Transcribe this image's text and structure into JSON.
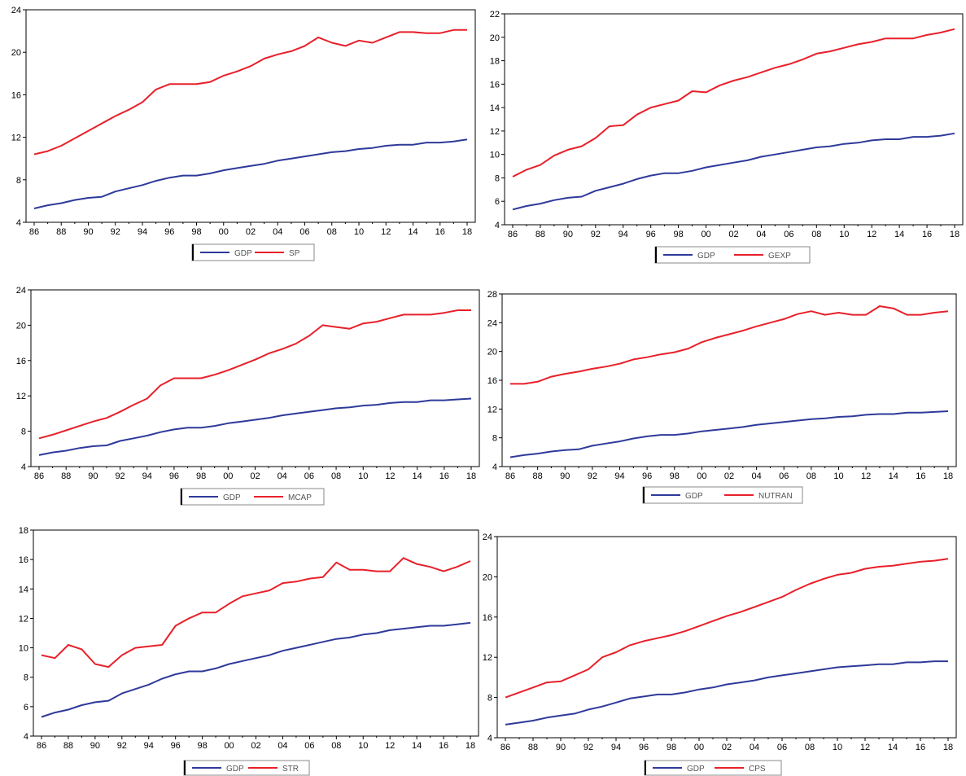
{
  "chart_data": [
    {
      "type": "line",
      "ylim": [
        4,
        24
      ],
      "y_ticks": [
        4,
        8,
        12,
        16,
        20,
        24
      ],
      "x_tick_labels": [
        "86",
        "88",
        "90",
        "92",
        "94",
        "96",
        "98",
        "00",
        "02",
        "04",
        "06",
        "08",
        "10",
        "12",
        "14",
        "16",
        "18"
      ],
      "grid": false,
      "legend": "bottom",
      "x": [
        1986,
        1987,
        1988,
        1989,
        1990,
        1991,
        1992,
        1993,
        1994,
        1995,
        1996,
        1997,
        1998,
        1999,
        2000,
        2001,
        2002,
        2003,
        2004,
        2005,
        2006,
        2007,
        2008,
        2009,
        2010,
        2011,
        2012,
        2013,
        2014,
        2015,
        2016,
        2017,
        2018
      ],
      "series": [
        {
          "name": "GDP",
          "color": "#2e3a9a",
          "values": [
            5.3,
            5.6,
            5.8,
            6.1,
            6.3,
            6.4,
            6.9,
            7.2,
            7.5,
            7.9,
            8.2,
            8.4,
            8.4,
            8.6,
            8.9,
            9.1,
            9.3,
            9.5,
            9.8,
            10.0,
            10.2,
            10.4,
            10.6,
            10.7,
            10.9,
            11.0,
            11.2,
            11.3,
            11.3,
            11.5,
            11.5,
            11.6,
            11.8
          ]
        },
        {
          "name": "SP",
          "color": "#e8202a",
          "values": [
            10.4,
            10.7,
            11.2,
            11.9,
            12.6,
            13.3,
            14.0,
            14.6,
            15.3,
            16.5,
            17.0,
            17.0,
            17.0,
            17.2,
            17.8,
            18.2,
            18.7,
            19.4,
            19.8,
            20.1,
            20.6,
            21.4,
            20.9,
            20.6,
            21.1,
            20.9,
            21.4,
            21.9,
            21.9,
            21.8,
            21.8,
            22.1,
            22.1
          ]
        }
      ]
    },
    {
      "type": "line",
      "ylim": [
        4,
        22
      ],
      "y_ticks": [
        4,
        6,
        8,
        10,
        12,
        14,
        16,
        18,
        20,
        22
      ],
      "x_tick_labels": [
        "86",
        "88",
        "90",
        "92",
        "94",
        "96",
        "98",
        "00",
        "02",
        "04",
        "06",
        "08",
        "10",
        "12",
        "14",
        "16",
        "18"
      ],
      "grid": false,
      "legend": "bottom",
      "x": [
        1986,
        1987,
        1988,
        1989,
        1990,
        1991,
        1992,
        1993,
        1994,
        1995,
        1996,
        1997,
        1998,
        1999,
        2000,
        2001,
        2002,
        2003,
        2004,
        2005,
        2006,
        2007,
        2008,
        2009,
        2010,
        2011,
        2012,
        2013,
        2014,
        2015,
        2016,
        2017,
        2018
      ],
      "series": [
        {
          "name": "GDP",
          "color": "#2e3a9a",
          "values": [
            5.3,
            5.6,
            5.8,
            6.1,
            6.3,
            6.4,
            6.9,
            7.2,
            7.5,
            7.9,
            8.2,
            8.4,
            8.4,
            8.6,
            8.9,
            9.1,
            9.3,
            9.5,
            9.8,
            10.0,
            10.2,
            10.4,
            10.6,
            10.7,
            10.9,
            11.0,
            11.2,
            11.3,
            11.3,
            11.5,
            11.5,
            11.6,
            11.8
          ]
        },
        {
          "name": "GEXP",
          "color": "#e8202a",
          "values": [
            8.1,
            8.7,
            9.1,
            9.9,
            10.4,
            10.7,
            11.4,
            12.4,
            12.5,
            13.4,
            14.0,
            14.3,
            14.6,
            15.4,
            15.3,
            15.9,
            16.3,
            16.6,
            17.0,
            17.4,
            17.7,
            18.1,
            18.6,
            18.8,
            19.1,
            19.4,
            19.6,
            19.9,
            19.9,
            19.9,
            20.2,
            20.4,
            20.7
          ]
        }
      ]
    },
    {
      "type": "line",
      "ylim": [
        4,
        24
      ],
      "y_ticks": [
        4,
        8,
        12,
        16,
        20,
        24
      ],
      "x_tick_labels": [
        "86",
        "88",
        "90",
        "92",
        "94",
        "96",
        "98",
        "00",
        "02",
        "04",
        "06",
        "08",
        "10",
        "12",
        "14",
        "16",
        "18"
      ],
      "grid": false,
      "legend": "bottom",
      "x": [
        1986,
        1987,
        1988,
        1989,
        1990,
        1991,
        1992,
        1993,
        1994,
        1995,
        1996,
        1997,
        1998,
        1999,
        2000,
        2001,
        2002,
        2003,
        2004,
        2005,
        2006,
        2007,
        2008,
        2009,
        2010,
        2011,
        2012,
        2013,
        2014,
        2015,
        2016,
        2017,
        2018
      ],
      "series": [
        {
          "name": "GDP",
          "color": "#2e3a9a",
          "values": [
            5.3,
            5.6,
            5.8,
            6.1,
            6.3,
            6.4,
            6.9,
            7.2,
            7.5,
            7.9,
            8.2,
            8.4,
            8.4,
            8.6,
            8.9,
            9.1,
            9.3,
            9.5,
            9.8,
            10.0,
            10.2,
            10.4,
            10.6,
            10.7,
            10.9,
            11.0,
            11.2,
            11.3,
            11.3,
            11.5,
            11.5,
            11.6,
            11.7
          ]
        },
        {
          "name": "MCAP",
          "color": "#e8202a",
          "values": [
            7.2,
            7.6,
            8.1,
            8.6,
            9.1,
            9.5,
            10.2,
            11.0,
            11.7,
            13.2,
            14.0,
            14.0,
            14.0,
            14.4,
            14.9,
            15.5,
            16.1,
            16.8,
            17.3,
            17.9,
            18.8,
            20.0,
            19.8,
            19.6,
            20.2,
            20.4,
            20.8,
            21.2,
            21.2,
            21.2,
            21.4,
            21.7,
            21.7
          ]
        }
      ]
    },
    {
      "type": "line",
      "ylim": [
        4,
        28
      ],
      "y_ticks": [
        4,
        8,
        12,
        16,
        20,
        24,
        28
      ],
      "x_tick_labels": [
        "86",
        "88",
        "90",
        "92",
        "94",
        "96",
        "98",
        "00",
        "02",
        "04",
        "06",
        "08",
        "10",
        "12",
        "14",
        "16",
        "18"
      ],
      "grid": false,
      "legend": "bottom",
      "x": [
        1986,
        1987,
        1988,
        1989,
        1990,
        1991,
        1992,
        1993,
        1994,
        1995,
        1996,
        1997,
        1998,
        1999,
        2000,
        2001,
        2002,
        2003,
        2004,
        2005,
        2006,
        2007,
        2008,
        2009,
        2010,
        2011,
        2012,
        2013,
        2014,
        2015,
        2016,
        2017,
        2018
      ],
      "series": [
        {
          "name": "GDP",
          "color": "#2e3a9a",
          "values": [
            5.3,
            5.6,
            5.8,
            6.1,
            6.3,
            6.4,
            6.9,
            7.2,
            7.5,
            7.9,
            8.2,
            8.4,
            8.4,
            8.6,
            8.9,
            9.1,
            9.3,
            9.5,
            9.8,
            10.0,
            10.2,
            10.4,
            10.6,
            10.7,
            10.9,
            11.0,
            11.2,
            11.3,
            11.3,
            11.5,
            11.5,
            11.6,
            11.7
          ]
        },
        {
          "name": "NUTRAN",
          "color": "#e8202a",
          "values": [
            15.5,
            15.5,
            15.8,
            16.5,
            16.9,
            17.2,
            17.6,
            17.9,
            18.3,
            18.9,
            19.2,
            19.6,
            19.9,
            20.4,
            21.3,
            21.9,
            22.4,
            22.9,
            23.5,
            24.0,
            24.5,
            25.2,
            25.6,
            25.1,
            25.4,
            25.1,
            25.1,
            26.3,
            26.0,
            25.1,
            25.1,
            25.4,
            25.6
          ]
        }
      ]
    },
    {
      "type": "line",
      "ylim": [
        4,
        18
      ],
      "y_ticks": [
        4,
        6,
        8,
        10,
        12,
        14,
        16,
        18
      ],
      "x_tick_labels": [
        "86",
        "88",
        "90",
        "92",
        "94",
        "96",
        "98",
        "00",
        "02",
        "04",
        "06",
        "08",
        "10",
        "12",
        "14",
        "16",
        "18"
      ],
      "grid": false,
      "legend": "bottom",
      "x": [
        1986,
        1987,
        1988,
        1989,
        1990,
        1991,
        1992,
        1993,
        1994,
        1995,
        1996,
        1997,
        1998,
        1999,
        2000,
        2001,
        2002,
        2003,
        2004,
        2005,
        2006,
        2007,
        2008,
        2009,
        2010,
        2011,
        2012,
        2013,
        2014,
        2015,
        2016,
        2017,
        2018
      ],
      "series": [
        {
          "name": "GDP",
          "color": "#2e3a9a",
          "values": [
            5.3,
            5.6,
            5.8,
            6.1,
            6.3,
            6.4,
            6.9,
            7.2,
            7.5,
            7.9,
            8.2,
            8.4,
            8.4,
            8.6,
            8.9,
            9.1,
            9.3,
            9.5,
            9.8,
            10.0,
            10.2,
            10.4,
            10.6,
            10.7,
            10.9,
            11.0,
            11.2,
            11.3,
            11.4,
            11.5,
            11.5,
            11.6,
            11.7
          ]
        },
        {
          "name": "STR",
          "color": "#e8202a",
          "values": [
            9.5,
            9.3,
            10.2,
            9.9,
            8.9,
            8.7,
            9.5,
            10.0,
            10.1,
            10.2,
            11.5,
            12.0,
            12.4,
            12.4,
            13.0,
            13.5,
            13.7,
            13.9,
            14.4,
            14.5,
            14.7,
            14.8,
            15.8,
            15.3,
            15.3,
            15.2,
            15.2,
            16.1,
            15.7,
            15.5,
            15.2,
            15.5,
            15.9
          ]
        }
      ]
    },
    {
      "type": "line",
      "ylim": [
        4,
        24
      ],
      "y_ticks": [
        4,
        8,
        12,
        16,
        20,
        24
      ],
      "x_tick_labels": [
        "86",
        "88",
        "90",
        "92",
        "94",
        "96",
        "98",
        "00",
        "02",
        "04",
        "06",
        "08",
        "10",
        "12",
        "14",
        "16",
        "18"
      ],
      "grid": false,
      "legend": "bottom",
      "x": [
        1986,
        1987,
        1988,
        1989,
        1990,
        1991,
        1992,
        1993,
        1994,
        1995,
        1996,
        1997,
        1998,
        1999,
        2000,
        2001,
        2002,
        2003,
        2004,
        2005,
        2006,
        2007,
        2008,
        2009,
        2010,
        2011,
        2012,
        2013,
        2014,
        2015,
        2016,
        2017,
        2018
      ],
      "series": [
        {
          "name": "GDP",
          "color": "#2e3a9a",
          "values": [
            5.3,
            5.5,
            5.7,
            6.0,
            6.2,
            6.4,
            6.8,
            7.1,
            7.5,
            7.9,
            8.1,
            8.3,
            8.3,
            8.5,
            8.8,
            9.0,
            9.3,
            9.5,
            9.7,
            10.0,
            10.2,
            10.4,
            10.6,
            10.8,
            11.0,
            11.1,
            11.2,
            11.3,
            11.3,
            11.5,
            11.5,
            11.6,
            11.6
          ]
        },
        {
          "name": "CPS",
          "color": "#e8202a",
          "values": [
            8.0,
            8.5,
            9.0,
            9.5,
            9.6,
            10.2,
            10.8,
            12.0,
            12.5,
            13.2,
            13.6,
            13.9,
            14.2,
            14.6,
            15.1,
            15.6,
            16.1,
            16.5,
            17.0,
            17.5,
            18.0,
            18.7,
            19.3,
            19.8,
            20.2,
            20.4,
            20.8,
            21.0,
            21.1,
            21.3,
            21.5,
            21.6,
            21.8
          ]
        }
      ]
    }
  ]
}
